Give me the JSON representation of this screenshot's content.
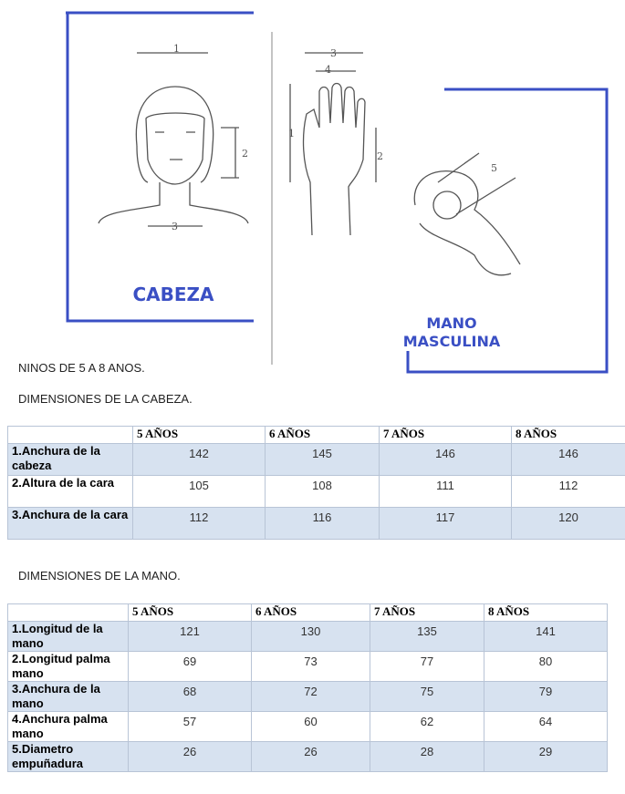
{
  "figure": {
    "head_label": "CABEZA",
    "hand_label": "MANO MASCULINA",
    "head_dims": [
      "1",
      "2",
      "3"
    ],
    "hand_dims": [
      "3",
      "4",
      "1",
      "2",
      "5"
    ]
  },
  "heading": "NINOS DE 5 A 8 ANOS.",
  "tables": [
    {
      "title": "DIMENSIONES DE LA CABEZA.",
      "columns": [
        "5 AÑOS",
        "6 AÑOS",
        "7 AÑOS",
        "8 AÑOS"
      ],
      "rows": [
        {
          "label": "1.Anchura de la cabeza",
          "values": [
            142,
            145,
            146,
            146
          ]
        },
        {
          "label": "2.Altura de la cara",
          "values": [
            105,
            108,
            111,
            112
          ]
        },
        {
          "label": "3.Anchura de la cara",
          "values": [
            112,
            116,
            117,
            120
          ]
        }
      ]
    },
    {
      "title": "DIMENSIONES DE LA MANO.",
      "columns": [
        "5 AÑOS",
        "6 AÑOS",
        "7 AÑOS",
        "8 AÑOS"
      ],
      "rows": [
        {
          "label": "1.Longitud de la mano",
          "values": [
            121,
            130,
            135,
            141
          ]
        },
        {
          "label": "2.Longitud palma mano",
          "values": [
            69,
            73,
            77,
            80
          ]
        },
        {
          "label": "3.Anchura de la mano",
          "values": [
            68,
            72,
            75,
            79
          ]
        },
        {
          "label": "4.Anchura palma mano",
          "values": [
            57,
            60,
            62,
            64
          ]
        },
        {
          "label": "5.Diametro empuñadura",
          "values": [
            26,
            26,
            28,
            29
          ]
        }
      ]
    }
  ]
}
